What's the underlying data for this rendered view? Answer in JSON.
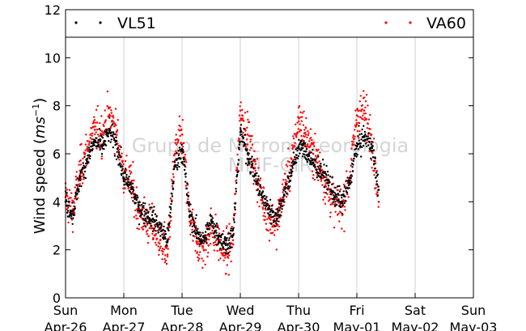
{
  "chart_data": {
    "type": "scatter",
    "title": "",
    "xlabel": "",
    "ylabel": "Wind speed (",
    "ylabel_unit": "ms",
    "ylabel_exp": "−1",
    "ylabel_close": ")",
    "ylim": [
      0,
      12
    ],
    "yticks": [
      "0",
      "2",
      "4",
      "6",
      "8",
      "10",
      "12"
    ],
    "xlim": [
      "2020-04-26 00:00",
      "2020-05-03 00:00"
    ],
    "xtick_days": [
      "Sun",
      "Mon",
      "Tue",
      "Wed",
      "Thu",
      "Fri",
      "Sat",
      "Sun"
    ],
    "xtick_dates": [
      "Apr-26",
      "Apr-27",
      "Apr-28",
      "Apr-29",
      "Apr-30",
      "May-01",
      "May-02",
      "May-03"
    ],
    "grid": "vertical",
    "legend_placement": "top",
    "watermark": "Grupo de Micrometeorologia",
    "watermark_sub": "MMF-CIR",
    "colors": {
      "VL51": "#000000",
      "VA60": "#ff0000"
    },
    "series": [
      {
        "name": "VL51",
        "x": [
          "2020-04-26 00:00",
          "2020-04-26 03:00",
          "2020-04-26 06:00",
          "2020-04-26 09:00",
          "2020-04-26 12:00",
          "2020-04-26 15:00",
          "2020-04-26 18:00",
          "2020-04-26 21:00",
          "2020-04-27 00:00",
          "2020-04-27 03:00",
          "2020-04-27 06:00",
          "2020-04-27 09:00",
          "2020-04-27 12:00",
          "2020-04-27 15:00",
          "2020-04-27 18:00",
          "2020-04-27 21:00",
          "2020-04-28 00:00",
          "2020-04-28 03:00",
          "2020-04-28 06:00",
          "2020-04-28 09:00",
          "2020-04-28 12:00",
          "2020-04-28 15:00",
          "2020-04-28 18:00",
          "2020-04-28 21:00",
          "2020-04-29 00:00",
          "2020-04-29 03:00",
          "2020-04-29 06:00",
          "2020-04-29 09:00",
          "2020-04-29 12:00",
          "2020-04-29 15:00",
          "2020-04-29 18:00",
          "2020-04-29 21:00",
          "2020-04-30 00:00",
          "2020-04-30 03:00",
          "2020-04-30 06:00",
          "2020-04-30 09:00",
          "2020-04-30 12:00",
          "2020-04-30 15:00",
          "2020-04-30 18:00",
          "2020-04-30 21:00",
          "2020-05-01 00:00",
          "2020-05-01 03:00",
          "2020-05-01 06:00",
          "2020-05-01 09:00"
        ],
        "y": [
          4.0,
          3.5,
          5.0,
          5.8,
          6.5,
          6.3,
          6.9,
          6.4,
          5.0,
          4.6,
          3.8,
          3.5,
          3.3,
          2.9,
          2.4,
          5.5,
          6.2,
          3.6,
          2.7,
          2.4,
          3.2,
          2.6,
          2.2,
          2.6,
          6.9,
          6.0,
          5.1,
          4.2,
          3.7,
          3.3,
          4.3,
          5.2,
          6.3,
          6.1,
          5.6,
          5.3,
          4.9,
          4.2,
          4.0,
          4.8,
          6.3,
          6.7,
          6.4,
          4.5
        ]
      },
      {
        "name": "VA60",
        "x": [
          "2020-04-26 00:00",
          "2020-04-26 03:00",
          "2020-04-26 06:00",
          "2020-04-26 09:00",
          "2020-04-26 12:00",
          "2020-04-26 15:00",
          "2020-04-26 18:00",
          "2020-04-26 21:00",
          "2020-04-27 00:00",
          "2020-04-27 03:00",
          "2020-04-27 06:00",
          "2020-04-27 09:00",
          "2020-04-27 12:00",
          "2020-04-27 15:00",
          "2020-04-27 18:00",
          "2020-04-27 21:00",
          "2020-04-28 00:00",
          "2020-04-28 03:00",
          "2020-04-28 06:00",
          "2020-04-28 09:00",
          "2020-04-28 12:00",
          "2020-04-28 15:00",
          "2020-04-28 18:00",
          "2020-04-28 21:00",
          "2020-04-29 00:00",
          "2020-04-29 03:00",
          "2020-04-29 06:00",
          "2020-04-29 09:00",
          "2020-04-29 12:00",
          "2020-04-29 15:00",
          "2020-04-29 18:00",
          "2020-04-29 21:00",
          "2020-04-30 00:00",
          "2020-04-30 03:00",
          "2020-04-30 06:00",
          "2020-04-30 09:00",
          "2020-04-30 12:00",
          "2020-04-30 15:00",
          "2020-04-30 18:00",
          "2020-04-30 21:00",
          "2020-05-01 00:00",
          "2020-05-01 03:00",
          "2020-05-01 06:00",
          "2020-05-01 09:00"
        ],
        "y": [
          4.2,
          3.6,
          5.3,
          6.2,
          7.0,
          6.8,
          7.6,
          6.9,
          5.2,
          4.8,
          3.6,
          3.2,
          2.9,
          2.4,
          1.8,
          6.0,
          6.8,
          3.4,
          2.3,
          2.0,
          3.0,
          2.3,
          1.8,
          2.4,
          7.8,
          6.8,
          5.4,
          4.1,
          3.3,
          3.0,
          4.6,
          5.5,
          7.5,
          6.8,
          6.0,
          5.4,
          4.5,
          3.9,
          3.8,
          5.0,
          7.6,
          7.8,
          6.8,
          4.0
        ]
      }
    ]
  }
}
